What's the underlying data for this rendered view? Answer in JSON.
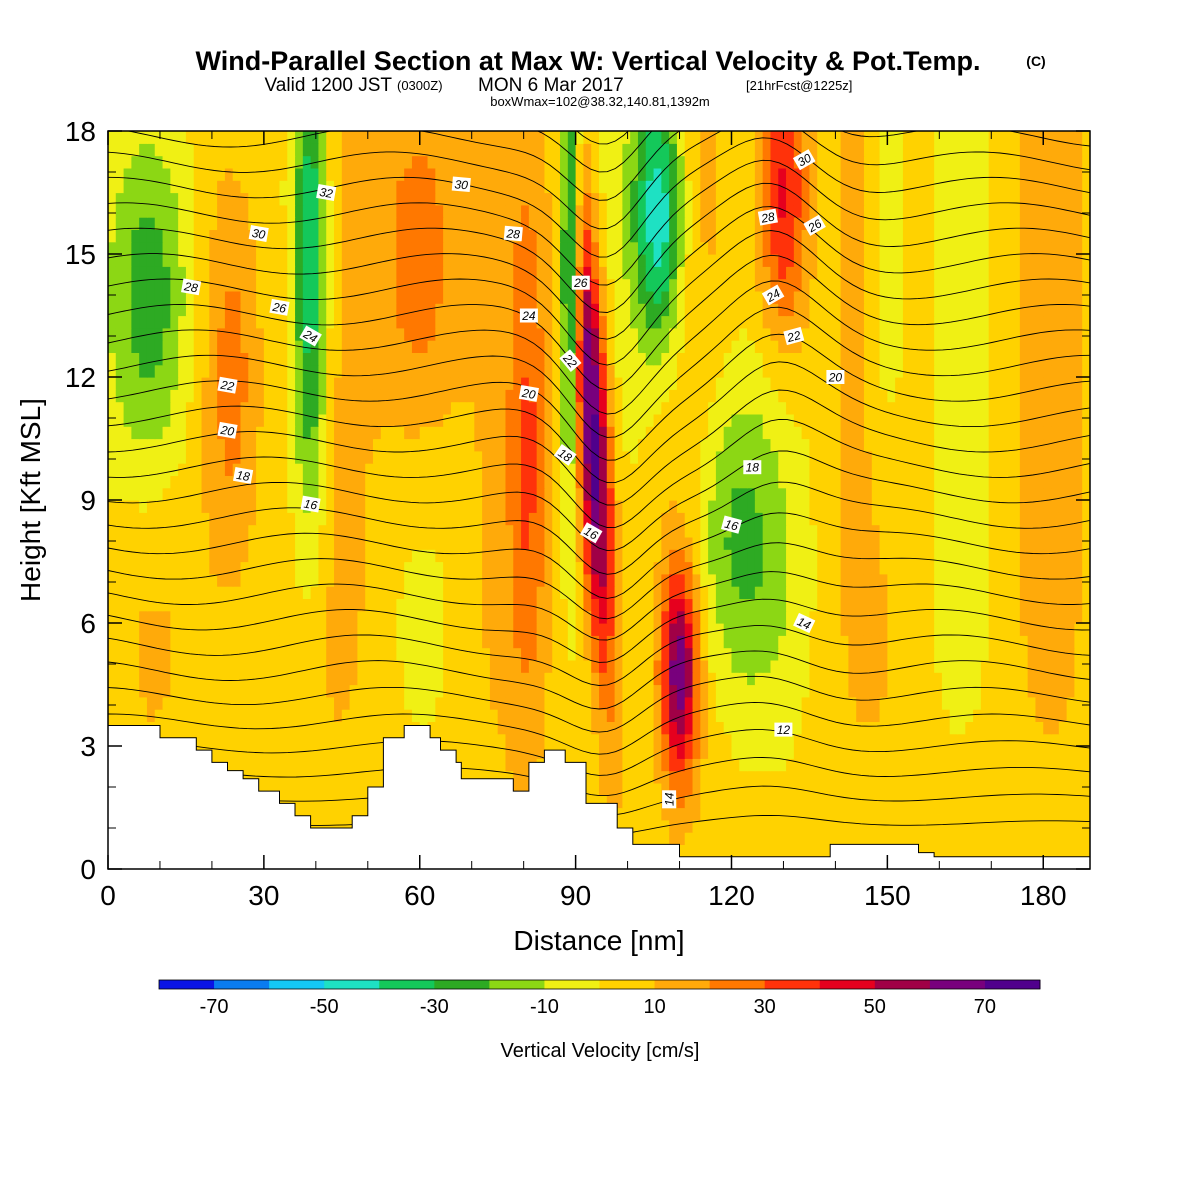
{
  "chart_data": {
    "type": "heatmap",
    "title": "Wind-Parallel Section at Max W: Vertical Velocity & Pot.Temp.",
    "title_mark": "(C)",
    "subtitle": {
      "valid": "Valid 1200 JST",
      "utc": "(0300Z)",
      "date": "MON 6 Mar 2017",
      "forecast": "[21hrFcst@1225z]"
    },
    "box_info": "boxWmax=102@38.32,140.81,1392m",
    "xlabel": "Distance [nm]",
    "ylabel": "Height [Kft MSL]",
    "xlim": [
      0,
      189
    ],
    "ylim": [
      0,
      18
    ],
    "x_ticks": [
      0,
      30,
      60,
      90,
      120,
      150,
      180
    ],
    "y_ticks": [
      0,
      3,
      6,
      9,
      12,
      15,
      18
    ],
    "colorbar": {
      "label": "Vertical Velocity [cm/s]",
      "tick_labels": [
        -70,
        -50,
        -30,
        -10,
        10,
        30,
        50,
        70
      ],
      "bounds": [
        -80,
        -70,
        -60,
        -50,
        -40,
        -30,
        -20,
        -10,
        0,
        10,
        20,
        30,
        40,
        50,
        60,
        70,
        80
      ],
      "colors": [
        "#0a14e6",
        "#0a7cf0",
        "#14c8f5",
        "#1ee1c3",
        "#14c85a",
        "#2daa23",
        "#8cd714",
        "#f0f014",
        "#ffd200",
        "#ffaa0a",
        "#ff7800",
        "#ff320a",
        "#e6001e",
        "#a00046",
        "#78007d",
        "#50008c"
      ]
    },
    "terrain_kft": [
      [
        0,
        3.5
      ],
      [
        10,
        3.5
      ],
      [
        10,
        3.2
      ],
      [
        17,
        3.2
      ],
      [
        17,
        2.9
      ],
      [
        20,
        2.9
      ],
      [
        20,
        2.6
      ],
      [
        23,
        2.6
      ],
      [
        23,
        2.4
      ],
      [
        26,
        2.4
      ],
      [
        26,
        2.2
      ],
      [
        29,
        2.2
      ],
      [
        29,
        1.9
      ],
      [
        33,
        1.9
      ],
      [
        33,
        1.6
      ],
      [
        36,
        1.6
      ],
      [
        36,
        1.3
      ],
      [
        39,
        1.3
      ],
      [
        39,
        1.0
      ],
      [
        47,
        1.0
      ],
      [
        47,
        1.3
      ],
      [
        50,
        1.3
      ],
      [
        50,
        2.0
      ],
      [
        53,
        2.0
      ],
      [
        53,
        3.2
      ],
      [
        57,
        3.2
      ],
      [
        57,
        3.5
      ],
      [
        62,
        3.5
      ],
      [
        62,
        3.2
      ],
      [
        64,
        3.2
      ],
      [
        64,
        2.9
      ],
      [
        67,
        2.9
      ],
      [
        67,
        2.6
      ],
      [
        68,
        2.6
      ],
      [
        68,
        2.2
      ],
      [
        78,
        2.2
      ],
      [
        78,
        1.9
      ],
      [
        81,
        1.9
      ],
      [
        81,
        2.6
      ],
      [
        84,
        2.6
      ],
      [
        84,
        2.9
      ],
      [
        88,
        2.9
      ],
      [
        88,
        2.6
      ],
      [
        92,
        2.6
      ],
      [
        92,
        1.6
      ],
      [
        98,
        1.6
      ],
      [
        98,
        1.0
      ],
      [
        101,
        1.0
      ],
      [
        101,
        0.6
      ],
      [
        110,
        0.6
      ],
      [
        110,
        0.3
      ],
      [
        139,
        0.3
      ],
      [
        139,
        0.6
      ],
      [
        156,
        0.6
      ],
      [
        156,
        0.4
      ],
      [
        159,
        0.4
      ],
      [
        159,
        0.3
      ],
      [
        189,
        0.3
      ]
    ],
    "theta_contour_labels": [
      {
        "label": "32",
        "x": 42,
        "y": 16.5,
        "rot": 10
      },
      {
        "label": "30",
        "x": 29,
        "y": 15.5,
        "rot": 10
      },
      {
        "label": "30",
        "x": 68,
        "y": 16.7,
        "rot": 5
      },
      {
        "label": "28",
        "x": 16,
        "y": 14.2,
        "rot": 10
      },
      {
        "label": "28",
        "x": 78,
        "y": 15.5,
        "rot": 5
      },
      {
        "label": "26",
        "x": 33,
        "y": 13.7,
        "rot": 10
      },
      {
        "label": "26",
        "x": 91,
        "y": 14.3,
        "rot": 0
      },
      {
        "label": "24",
        "x": 39,
        "y": 13.0,
        "rot": 30
      },
      {
        "label": "24",
        "x": 81,
        "y": 13.5,
        "rot": 0
      },
      {
        "label": "22",
        "x": 23,
        "y": 11.8,
        "rot": 10
      },
      {
        "label": "22",
        "x": 89,
        "y": 12.4,
        "rot": 50
      },
      {
        "label": "20",
        "x": 23,
        "y": 10.7,
        "rot": 10
      },
      {
        "label": "20",
        "x": 81,
        "y": 11.6,
        "rot": 10
      },
      {
        "label": "18",
        "x": 26,
        "y": 9.6,
        "rot": 10
      },
      {
        "label": "18",
        "x": 88,
        "y": 10.1,
        "rot": 35
      },
      {
        "label": "16",
        "x": 39,
        "y": 8.9,
        "rot": 10
      },
      {
        "label": "16",
        "x": 93,
        "y": 8.2,
        "rot": 30
      },
      {
        "label": "30",
        "x": 134,
        "y": 17.3,
        "rot": -30
      },
      {
        "label": "28",
        "x": 127,
        "y": 15.9,
        "rot": -10
      },
      {
        "label": "26",
        "x": 136,
        "y": 15.7,
        "rot": -30
      },
      {
        "label": "24",
        "x": 128,
        "y": 14.0,
        "rot": -30
      },
      {
        "label": "22",
        "x": 132,
        "y": 13.0,
        "rot": -15
      },
      {
        "label": "20",
        "x": 140,
        "y": 12.0,
        "rot": 0
      },
      {
        "label": "18",
        "x": 124,
        "y": 9.8,
        "rot": 0
      },
      {
        "label": "16",
        "x": 120,
        "y": 8.4,
        "rot": 15
      },
      {
        "label": "14",
        "x": 134,
        "y": 6.0,
        "rot": 25
      },
      {
        "label": "12",
        "x": 130,
        "y": 3.4,
        "rot": 0
      },
      {
        "label": "14",
        "x": 108,
        "y": 1.7,
        "rot": -90
      }
    ]
  }
}
